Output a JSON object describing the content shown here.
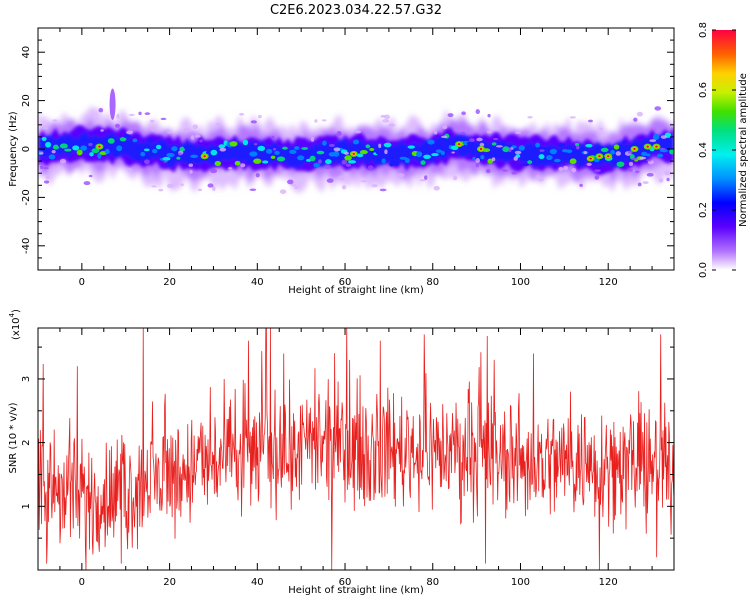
{
  "title": "C2E6.2023.034.22.57.G32",
  "colors": {
    "snr_line": "#e8201e",
    "frame": "#000000",
    "colormap": [
      "#d8b0ff",
      "#9a4cff",
      "#5a00ff",
      "#1c1cff",
      "#0080ff",
      "#00e6e6",
      "#00d27a",
      "#5ade00",
      "#c8e600",
      "#ffb400",
      "#ff5a00",
      "#e8003a"
    ]
  },
  "chart_data": [
    {
      "type": "heatmap",
      "name": "spectrogram",
      "xlabel": "Height of straight line (km)",
      "ylabel": "Frequency (Hz)",
      "xlim": [
        -10,
        135
      ],
      "ylim": [
        -50,
        50
      ],
      "x_ticks": [
        0,
        20,
        40,
        60,
        80,
        100,
        120
      ],
      "y_ticks": [
        -40,
        -20,
        0,
        20,
        40
      ],
      "colorbar": {
        "label": "Normalized spectral amplitude",
        "range": [
          0.0,
          0.8
        ],
        "ticks": [
          "0.0",
          "0.2",
          "0.4",
          "0.6",
          "0.8"
        ]
      },
      "band_center_hz": [
        [
          -10,
          0
        ],
        [
          0,
          2
        ],
        [
          10,
          1
        ],
        [
          20,
          -2
        ],
        [
          30,
          -2
        ],
        [
          40,
          -1
        ],
        [
          50,
          -3
        ],
        [
          60,
          -1
        ],
        [
          70,
          -2
        ],
        [
          80,
          -1
        ],
        [
          85,
          2
        ],
        [
          90,
          0
        ],
        [
          100,
          -2
        ],
        [
          110,
          -2
        ],
        [
          120,
          -3
        ],
        [
          130,
          1
        ],
        [
          135,
          2
        ]
      ],
      "band_core_halfwidth_hz": 5,
      "band_halo_halfwidth_hz": 12,
      "hotspots": [
        {
          "x": 4,
          "y": 1
        },
        {
          "x": 28,
          "y": -3
        },
        {
          "x": 62,
          "y": -2
        },
        {
          "x": 86,
          "y": 2
        },
        {
          "x": 91,
          "y": 0
        },
        {
          "x": 116,
          "y": -4
        },
        {
          "x": 118,
          "y": -3
        },
        {
          "x": 120,
          "y": -3
        },
        {
          "x": 126,
          "y": 0
        },
        {
          "x": 129,
          "y": 1
        },
        {
          "x": 131,
          "y": 1
        }
      ],
      "feature": {
        "x": 7,
        "y_range": [
          12,
          25
        ]
      }
    },
    {
      "type": "line",
      "name": "snr",
      "xlabel": "Height of straight line (km)",
      "ylabel": "SNR (10 * v/v)",
      "y_scale_label": "(x10",
      "y_scale_exponent": "4",
      "y_scale": 10000,
      "xlim": [
        -10,
        135
      ],
      "ylim": [
        0.0,
        3.8
      ],
      "x_ticks": [
        0,
        20,
        40,
        60,
        80,
        100,
        120
      ],
      "y_ticks": [
        1,
        2,
        3
      ],
      "series": [
        {
          "trend": [
            [
              -10,
              1.3
            ],
            [
              -5,
              1.2
            ],
            [
              0,
              1.1
            ],
            [
              10,
              1.2
            ],
            [
              20,
              1.5
            ],
            [
              30,
              1.7
            ],
            [
              40,
              1.8
            ],
            [
              50,
              1.9
            ],
            [
              60,
              1.9
            ],
            [
              70,
              1.9
            ],
            [
              80,
              1.9
            ],
            [
              90,
              1.8
            ],
            [
              100,
              1.7
            ],
            [
              110,
              1.7
            ],
            [
              120,
              1.7
            ],
            [
              130,
              1.6
            ],
            [
              135,
              1.6
            ]
          ],
          "spread": 0.75,
          "peaks": [
            [
              -1,
              3.2
            ],
            [
              14,
              3.8
            ],
            [
              38,
              3.6
            ],
            [
              42,
              3.8
            ],
            [
              43,
              3.8
            ],
            [
              46,
              3.4
            ],
            [
              61,
              3.3
            ],
            [
              68,
              3.6
            ],
            [
              78,
              3.7
            ],
            [
              94,
              3.3
            ],
            [
              103,
              3.4
            ],
            [
              132,
              3.7
            ]
          ],
          "troughs": [
            [
              -8,
              0.1
            ],
            [
              1,
              0.0
            ],
            [
              9,
              0.1
            ],
            [
              57,
              0.0
            ],
            [
              92,
              0.1
            ],
            [
              118,
              0.0
            ],
            [
              131,
              0.2
            ]
          ]
        }
      ]
    }
  ]
}
